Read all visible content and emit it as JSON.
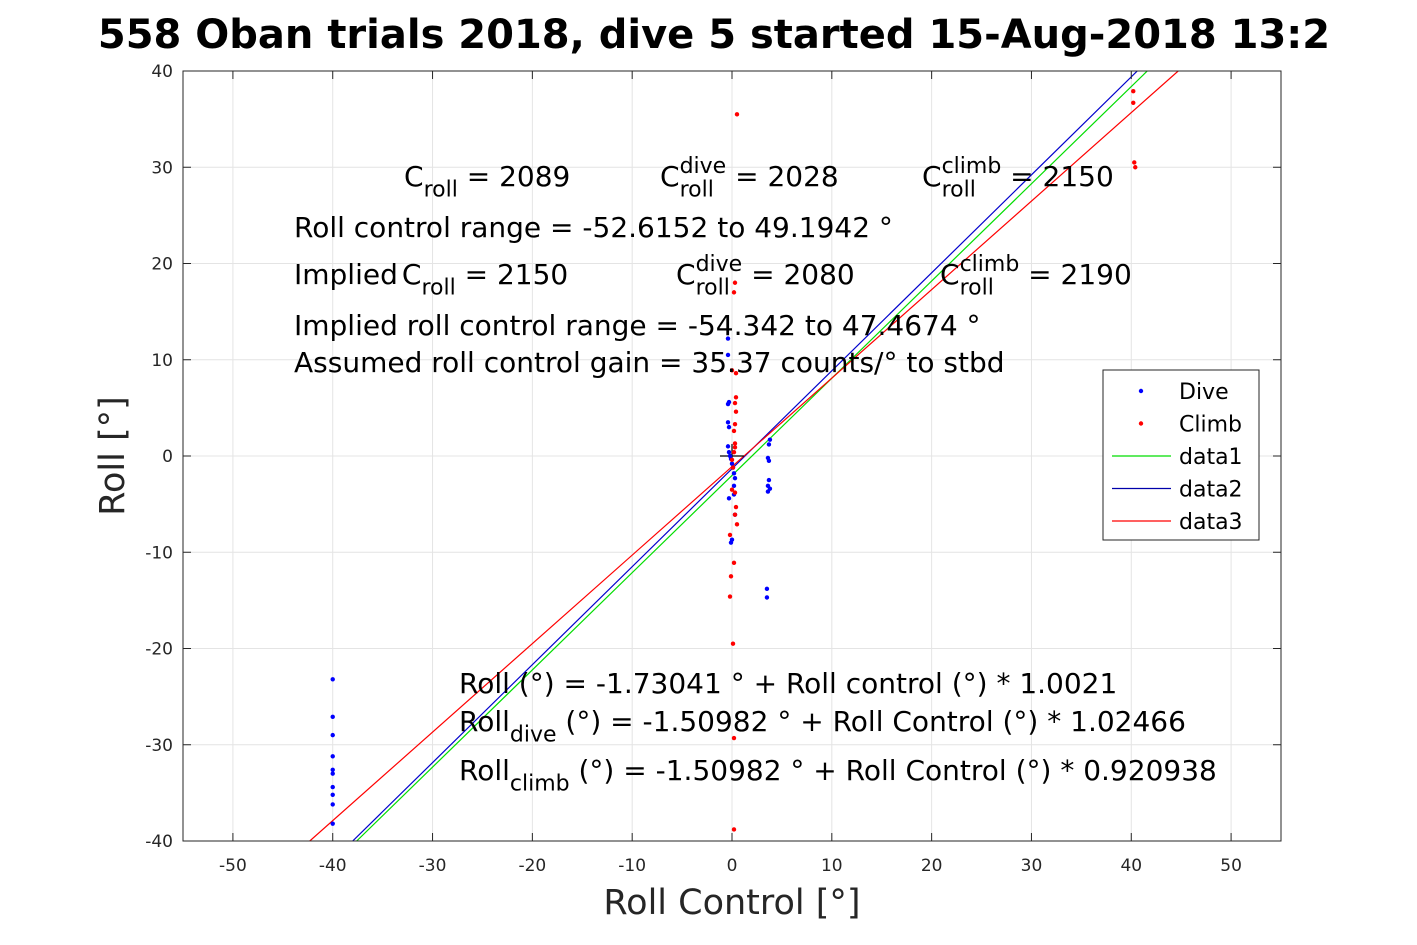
{
  "chart_data": {
    "type": "scatter",
    "title": "558 Oban trials 2018, dive 5 started 15-Aug-2018 13:2",
    "xlabel": "Roll Control [°]",
    "ylabel": "Roll [°]",
    "xlim": [
      -55,
      55
    ],
    "ylim": [
      -40,
      40
    ],
    "xticks": [
      -50,
      -40,
      -30,
      -20,
      -10,
      0,
      10,
      20,
      30,
      40,
      50
    ],
    "yticks": [
      -40,
      -30,
      -20,
      -10,
      0,
      10,
      20,
      30,
      40
    ],
    "grid": true,
    "legend_position": "right",
    "legend": [
      {
        "label": "Dive",
        "kind": "marker",
        "color": "#0000ff"
      },
      {
        "label": "Climb",
        "kind": "marker",
        "color": "#ff0000"
      },
      {
        "label": "data1",
        "kind": "line",
        "color": "#00dd00"
      },
      {
        "label": "data2",
        "kind": "line",
        "color": "#0000aa"
      },
      {
        "label": "data3",
        "kind": "line",
        "color": "#ff0000"
      }
    ],
    "series": [
      {
        "name": "Dive",
        "kind": "scatter",
        "color": "#0000ff",
        "points": [
          [
            -40,
            -23.2
          ],
          [
            -40,
            -27.1
          ],
          [
            -40,
            -29.0
          ],
          [
            -40,
            -31.2
          ],
          [
            -40,
            -32.6
          ],
          [
            -40,
            -33.0
          ],
          [
            -40,
            -34.4
          ],
          [
            -40,
            -35.2
          ],
          [
            -40,
            -36.2
          ],
          [
            -40,
            -38.2
          ],
          [
            -0.4,
            12.2
          ],
          [
            -0.4,
            10.5
          ],
          [
            -0.4,
            5.4
          ],
          [
            -0.3,
            5.6
          ],
          [
            -0.4,
            3.5
          ],
          [
            -0.3,
            3.0
          ],
          [
            -0.4,
            1.0
          ],
          [
            -0.3,
            0.4
          ],
          [
            -0.2,
            0.0
          ],
          [
            -0.1,
            -0.3
          ],
          [
            0.0,
            -0.8
          ],
          [
            0.1,
            -1.2
          ],
          [
            0.2,
            -1.8
          ],
          [
            0.3,
            -2.3
          ],
          [
            0.2,
            -3.1
          ],
          [
            0.2,
            -4.0
          ],
          [
            -0.3,
            -4.4
          ],
          [
            0.3,
            -6.1
          ],
          [
            0.0,
            -8.7
          ],
          [
            -0.1,
            -9.0
          ],
          [
            3.6,
            -0.2
          ],
          [
            3.7,
            -0.5
          ],
          [
            3.7,
            1.2
          ],
          [
            3.8,
            1.7
          ],
          [
            3.7,
            -2.5
          ],
          [
            3.6,
            -3.1
          ],
          [
            3.8,
            -3.4
          ],
          [
            3.6,
            -3.7
          ],
          [
            3.5,
            -13.8
          ],
          [
            3.5,
            -14.7
          ]
        ]
      },
      {
        "name": "Climb",
        "kind": "scatter",
        "color": "#ff0000",
        "points": [
          [
            0.5,
            35.5
          ],
          [
            0.3,
            18.0
          ],
          [
            0.2,
            17.0
          ],
          [
            0.0,
            8.9
          ],
          [
            0.4,
            8.6
          ],
          [
            0.4,
            6.1
          ],
          [
            0.3,
            5.5
          ],
          [
            0.4,
            4.6
          ],
          [
            0.3,
            3.3
          ],
          [
            0.2,
            2.6
          ],
          [
            0.3,
            1.3
          ],
          [
            0.3,
            0.9
          ],
          [
            0.2,
            0.4
          ],
          [
            0.0,
            -0.4
          ],
          [
            0.1,
            -1.2
          ],
          [
            0.0,
            -3.5
          ],
          [
            0.3,
            -3.8
          ],
          [
            0.4,
            -5.3
          ],
          [
            0.3,
            -6.1
          ],
          [
            0.5,
            -7.1
          ],
          [
            -0.2,
            -8.2
          ],
          [
            0.2,
            -11.1
          ],
          [
            -0.1,
            -12.5
          ],
          [
            -0.2,
            -14.6
          ],
          [
            0.1,
            -19.5
          ],
          [
            0.2,
            -29.3
          ],
          [
            0.2,
            -38.8
          ],
          [
            40.2,
            37.9
          ],
          [
            40.2,
            36.7
          ],
          [
            40.3,
            30.5
          ],
          [
            40.4,
            30.0
          ]
        ]
      },
      {
        "name": "data1",
        "kind": "line",
        "color": "#00dd00",
        "x": [
          -37.6,
          41.6
        ],
        "y": [
          -40,
          40
        ]
      },
      {
        "name": "data2",
        "kind": "line",
        "color": "#0000cc",
        "x": [
          -38.0,
          40.6
        ],
        "y": [
          -40,
          40
        ]
      },
      {
        "name": "data3",
        "kind": "line",
        "color": "#ff0000",
        "x": [
          -42.3,
          44.7
        ],
        "y": [
          -40,
          40
        ]
      }
    ],
    "annotations": {
      "c_roll": {
        "base": "C",
        "sub": "roll",
        "rest": " = 2089"
      },
      "c_roll_dive": {
        "base": "C",
        "sub": "roll",
        "sup": "dive",
        "rest": " = 2028"
      },
      "c_roll_climb": {
        "base": "C",
        "sub": "roll",
        "sup": "climb",
        "rest": " = 2150"
      },
      "roll_control_range": "Roll control range = -52.6152 to 49.1942 °",
      "implied_prefix": "Implied ",
      "implied_c_roll": {
        "base": "C",
        "sub": "roll",
        "rest": " = 2150"
      },
      "implied_c_roll_dive": {
        "base": "C",
        "sub": "roll",
        "sup": "dive",
        "rest": " = 2080"
      },
      "implied_c_roll_climb": {
        "base": "C",
        "sub": "roll",
        "sup": "climb",
        "rest": " = 2190"
      },
      "implied_range": "Implied roll control range = -54.342 to 47.4674 °",
      "assumed_gain": "Assumed roll control gain = 35.37 counts/° to stbd",
      "fit_all": "Roll (°) = -1.73041 ° + Roll control (°) * 1.0021",
      "fit_dive": {
        "base": "Roll",
        "sub": "dive",
        "rest": " (°) = -1.50982 ° + Roll Control (°) * 1.02466"
      },
      "fit_climb": {
        "base": "Roll",
        "sub": "climb",
        "rest": " (°) = -1.50982 ° + Roll Control (°) * 0.920938"
      }
    }
  }
}
